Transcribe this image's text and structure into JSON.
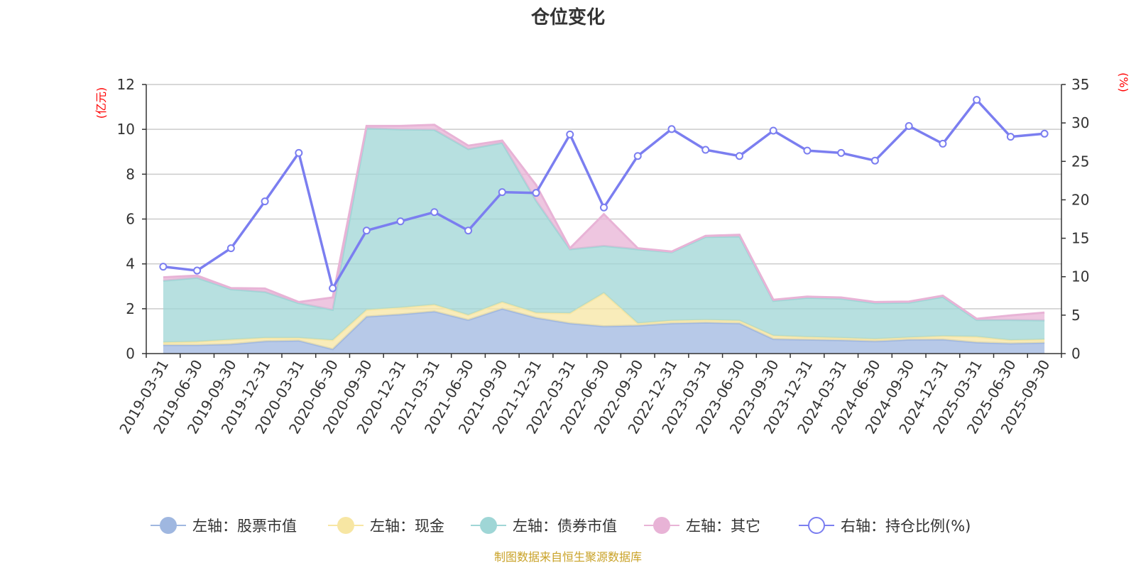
{
  "chart_data": {
    "type": "area",
    "title": "仓位变化",
    "left_unit": "(亿元)",
    "right_unit": "(%)",
    "left_axis": {
      "min": 0,
      "max": 12,
      "ticks": [
        "0",
        "2",
        "4",
        "6",
        "8",
        "10",
        "12"
      ]
    },
    "right_axis": {
      "min": 0,
      "max": 35,
      "ticks": [
        "0",
        "5",
        "10",
        "15",
        "20",
        "25",
        "30",
        "35"
      ]
    },
    "x": [
      "2019-03-31",
      "2019-06-30",
      "2019-09-30",
      "2019-12-31",
      "2020-03-31",
      "2020-06-30",
      "2020-09-30",
      "2020-12-31",
      "2021-03-31",
      "2021-06-30",
      "2021-09-30",
      "2021-12-31",
      "2022-03-31",
      "2022-06-30",
      "2022-09-30",
      "2022-12-31",
      "2023-03-31",
      "2023-06-30",
      "2023-09-30",
      "2023-12-31",
      "2024-03-31",
      "2024-06-30",
      "2024-09-30",
      "2024-12-31",
      "2025-03-31",
      "2025-06-30",
      "2025-09-30"
    ],
    "series": [
      {
        "name": "左轴：股票市值",
        "axis": "left",
        "color": "#9fb7e0",
        "values": [
          0.38,
          0.38,
          0.42,
          0.55,
          0.58,
          0.2,
          1.65,
          1.75,
          1.88,
          1.5,
          2.0,
          1.6,
          1.35,
          1.22,
          1.25,
          1.35,
          1.38,
          1.35,
          0.65,
          0.62,
          0.6,
          0.55,
          0.62,
          0.63,
          0.5,
          0.45,
          0.48
        ]
      },
      {
        "name": "左轴：现金",
        "axis": "left",
        "color": "#f7e6a3",
        "values": [
          0.12,
          0.15,
          0.2,
          0.15,
          0.12,
          0.4,
          0.3,
          0.3,
          0.3,
          0.22,
          0.3,
          0.22,
          0.45,
          1.48,
          0.1,
          0.12,
          0.12,
          0.12,
          0.15,
          0.12,
          0.1,
          0.1,
          0.1,
          0.15,
          0.25,
          0.15,
          0.15
        ]
      },
      {
        "name": "左轴：债券市值",
        "axis": "left",
        "color": "#9fd6d6",
        "values": [
          2.75,
          2.85,
          2.25,
          2.05,
          1.55,
          1.35,
          8.1,
          7.95,
          7.8,
          7.4,
          7.1,
          5.0,
          2.85,
          2.1,
          3.3,
          3.05,
          3.7,
          3.75,
          1.55,
          1.75,
          1.75,
          1.6,
          1.55,
          1.75,
          0.75,
          0.9,
          0.85
        ]
      },
      {
        "name": "左轴：其它",
        "axis": "left",
        "color": "#e8b3d6",
        "values": [
          0.15,
          0.1,
          0.05,
          0.15,
          0.05,
          0.55,
          0.1,
          0.15,
          0.22,
          0.15,
          0.1,
          0.7,
          0.05,
          1.42,
          0.05,
          0.03,
          0.05,
          0.08,
          0.05,
          0.05,
          0.05,
          0.05,
          0.05,
          0.05,
          0.05,
          0.2,
          0.35
        ]
      },
      {
        "name": "右轴：持仓比例(%)",
        "axis": "right",
        "color": "#7b7ef0",
        "values": [
          11.3,
          10.8,
          13.7,
          19.8,
          26.1,
          8.5,
          16.0,
          17.2,
          18.4,
          16.0,
          21.0,
          20.9,
          28.5,
          19.0,
          25.7,
          29.2,
          26.5,
          25.7,
          29.0,
          26.4,
          26.1,
          25.1,
          29.6,
          27.3,
          33.0,
          28.2,
          28.6
        ]
      }
    ],
    "legend_position": "bottom",
    "source": "制图数据来自恒生聚源数据库"
  }
}
